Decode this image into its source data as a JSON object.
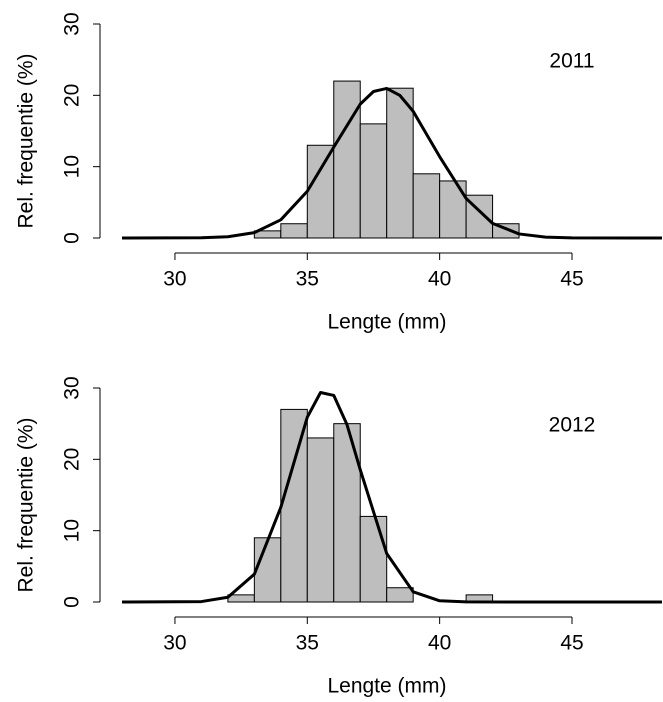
{
  "chart_data": [
    {
      "type": "histogram",
      "annotation": "2011",
      "xlabel": "Lengte (mm)",
      "ylabel": "Rel. frequentie (%)",
      "bins": [
        33,
        34,
        35,
        36,
        37,
        38,
        39,
        40,
        41,
        42,
        43
      ],
      "values": [
        1,
        2,
        13,
        22,
        16,
        21,
        9,
        8,
        6,
        2
      ],
      "color": "#bebebe",
      "curve_color": "#000000",
      "curve": {
        "x": [
          28,
          31,
          32,
          33,
          34,
          35,
          36,
          37,
          37.5,
          38,
          38.5,
          39,
          40,
          41,
          42,
          43,
          44,
          45,
          48.4
        ],
        "y": [
          0,
          0.03,
          0.17,
          0.75,
          2.55,
          6.55,
          12.74,
          18.77,
          20.54,
          20.97,
          19.98,
          17.76,
          11.4,
          5.55,
          2.05,
          0.57,
          0.12,
          0.02,
          0
        ]
      },
      "xlim": [
        28,
        48.4
      ],
      "xticks": [
        30,
        35,
        40,
        45
      ],
      "ylim": [
        0,
        30
      ],
      "yticks": [
        0,
        10,
        20,
        30
      ]
    },
    {
      "type": "histogram",
      "annotation": "2012",
      "xlabel": "Lengte (mm)",
      "ylabel": "Rel. frequentie (%)",
      "bins": [
        32,
        33,
        34,
        35,
        36,
        37,
        38,
        39,
        40,
        41,
        42
      ],
      "values": [
        1,
        9,
        27,
        23,
        25,
        12,
        2,
        0,
        0,
        1
      ],
      "color": "#bebebe",
      "curve_color": "#000000",
      "curve": {
        "x": [
          28,
          31,
          32,
          33,
          34,
          35,
          35.5,
          36,
          36.5,
          37,
          38,
          39,
          40,
          41,
          48.4
        ],
        "y": [
          0,
          0.06,
          0.66,
          3.9,
          13.28,
          25.91,
          29.37,
          28.96,
          24.86,
          18.55,
          6.8,
          1.43,
          0.17,
          0.01,
          0
        ]
      },
      "xlim": [
        28,
        48.4
      ],
      "xticks": [
        30,
        35,
        40,
        45
      ],
      "ylim": [
        0,
        30
      ],
      "yticks": [
        0,
        10,
        20,
        30
      ]
    }
  ]
}
